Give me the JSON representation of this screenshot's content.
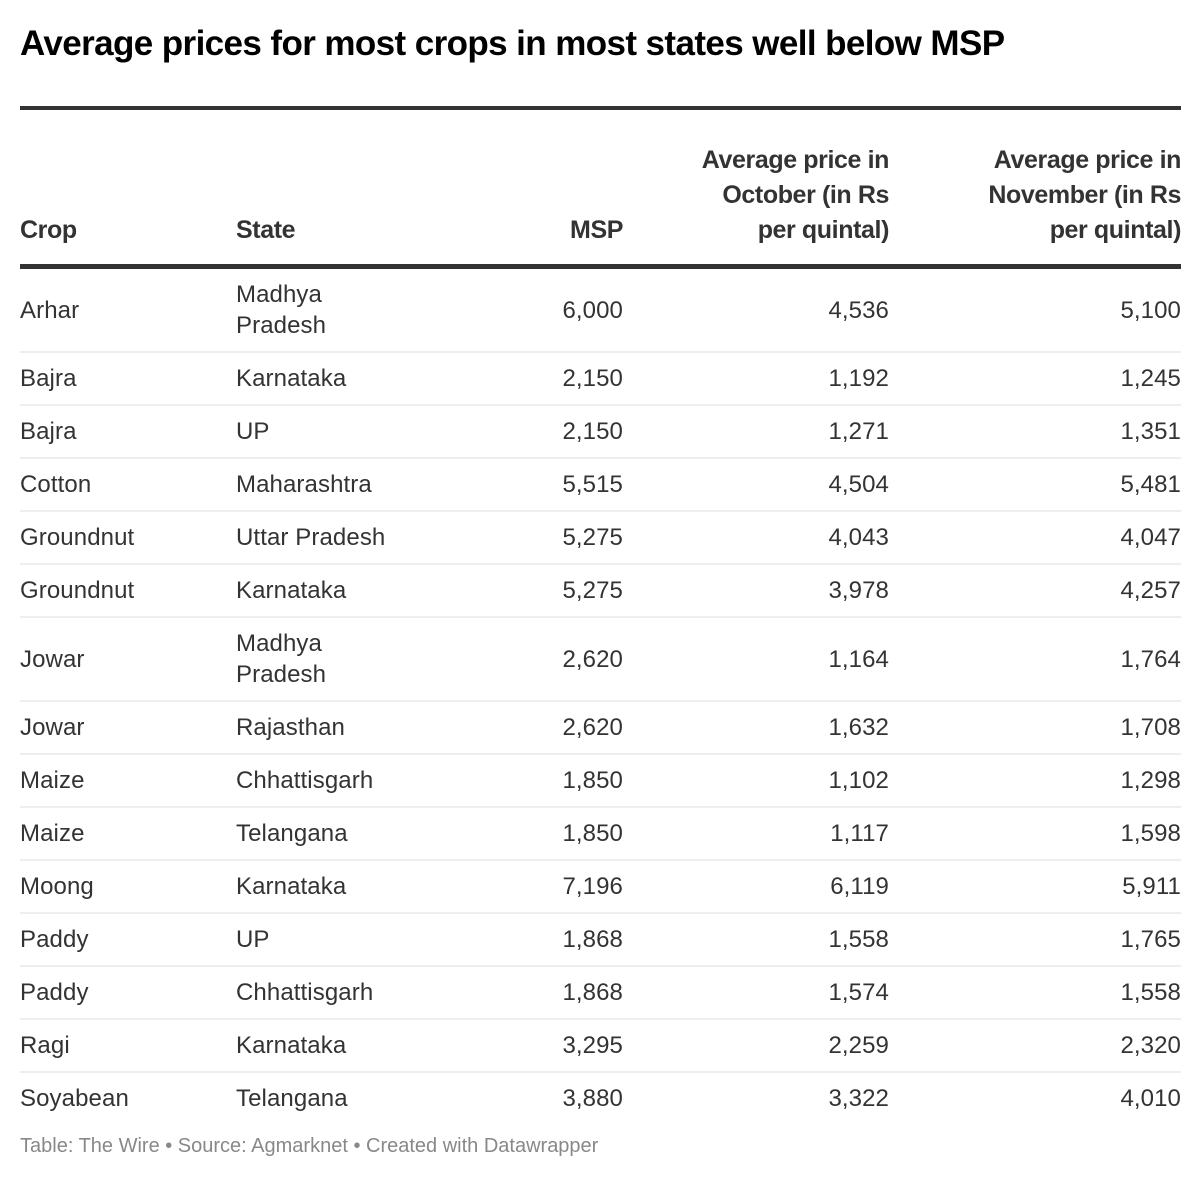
{
  "title": "Average prices for most crops in most states well below MSP",
  "table": {
    "headers": {
      "crop": "Crop",
      "state": "State",
      "msp": "MSP",
      "october": "Average price in October (in Rs per quintal)",
      "november": "Average price in November (in Rs per quintal)"
    },
    "rows": [
      {
        "crop": "Arhar",
        "state": "Madhya Pradesh",
        "msp": "6,000",
        "october": "4,536",
        "november": "5,100"
      },
      {
        "crop": "Bajra",
        "state": "Karnataka",
        "msp": "2,150",
        "october": "1,192",
        "november": "1,245"
      },
      {
        "crop": "Bajra",
        "state": "UP",
        "msp": "2,150",
        "october": "1,271",
        "november": "1,351"
      },
      {
        "crop": "Cotton",
        "state": "Maharashtra",
        "msp": "5,515",
        "october": "4,504",
        "november": "5,481"
      },
      {
        "crop": "Groundnut",
        "state": "Uttar Pradesh",
        "msp": "5,275",
        "october": "4,043",
        "november": "4,047"
      },
      {
        "crop": "Groundnut",
        "state": "Karnataka",
        "msp": "5,275",
        "october": "3,978",
        "november": "4,257"
      },
      {
        "crop": "Jowar",
        "state": "Madhya Pradesh",
        "msp": "2,620",
        "october": "1,164",
        "november": "1,764"
      },
      {
        "crop": "Jowar",
        "state": "Rajasthan",
        "msp": "2,620",
        "october": "1,632",
        "november": "1,708"
      },
      {
        "crop": "Maize",
        "state": "Chhattisgarh",
        "msp": "1,850",
        "october": "1,102",
        "november": "1,298"
      },
      {
        "crop": "Maize",
        "state": "Telangana",
        "msp": "1,850",
        "october": "1,117",
        "november": "1,598"
      },
      {
        "crop": "Moong",
        "state": "Karnataka",
        "msp": "7,196",
        "october": "6,119",
        "november": "5,911"
      },
      {
        "crop": "Paddy",
        "state": "UP",
        "msp": "1,868",
        "october": "1,558",
        "november": "1,765"
      },
      {
        "crop": "Paddy",
        "state": "Chhattisgarh",
        "msp": "1,868",
        "october": "1,574",
        "november": "1,558"
      },
      {
        "crop": "Ragi",
        "state": "Karnataka",
        "msp": "3,295",
        "october": "2,259",
        "november": "2,320"
      },
      {
        "crop": "Soyabean",
        "state": "Telangana",
        "msp": "3,880",
        "october": "3,322",
        "november": "4,010"
      }
    ]
  },
  "footer": {
    "text": "Table: The Wire • Source: Agmarknet • Created with Datawrapper"
  },
  "colors": {
    "text": "#333333",
    "title": "#000000",
    "rule": "#333333",
    "row_divider": "#eeeeee",
    "notes": "#888888"
  }
}
